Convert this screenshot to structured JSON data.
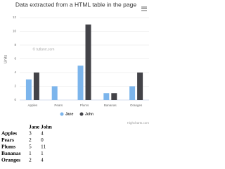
{
  "chart_data": {
    "type": "bar",
    "title": "Data extracted from a HTML table in the page",
    "y_label": "Units",
    "watermark": "© tutlane.com",
    "credits": "Highcharts.com",
    "categories": [
      "Apples",
      "Pears",
      "Plums",
      "Bananas",
      "Oranges"
    ],
    "series": [
      {
        "name": "Jane",
        "color": "#7cb5ec",
        "values": [
          3,
          2,
          5,
          1,
          2
        ]
      },
      {
        "name": "John",
        "color": "#434348",
        "values": [
          4,
          0,
          11,
          1,
          4
        ]
      }
    ],
    "ylim": [
      0,
      12
    ],
    "yticks": [
      0,
      2,
      4,
      6,
      8,
      10,
      12
    ],
    "grid": true
  },
  "table": {
    "header": [
      "Jane",
      "John"
    ],
    "rows": [
      [
        "Apples",
        3,
        4
      ],
      [
        "Pears",
        2,
        0
      ],
      [
        "Plums",
        5,
        11
      ],
      [
        "Bananas",
        1,
        1
      ],
      [
        "Oranges",
        2,
        4
      ]
    ]
  }
}
